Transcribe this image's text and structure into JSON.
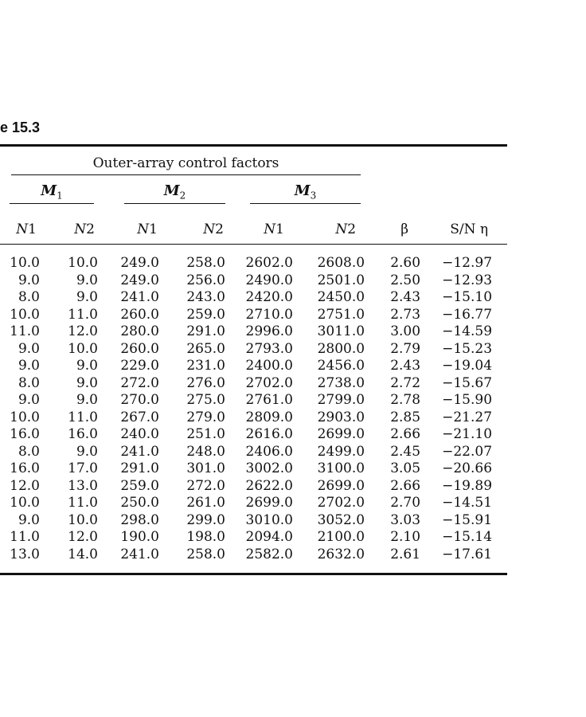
{
  "colors": {
    "ink": "#111111",
    "background": "#ffffff"
  },
  "caption": "e 15.3",
  "chart_data": {
    "type": "table",
    "span_header": "Outer-array control factors",
    "group_headers": [
      {
        "letter": "M",
        "sub": "1"
      },
      {
        "letter": "M",
        "sub": "2"
      },
      {
        "letter": "M",
        "sub": "3"
      }
    ],
    "sub_headers": [
      {
        "n": "N",
        "num": "1"
      },
      {
        "n": "N",
        "num": "2"
      },
      {
        "n": "N",
        "num": "1"
      },
      {
        "n": "N",
        "num": "2"
      },
      {
        "n": "N",
        "num": "1"
      },
      {
        "n": "N",
        "num": "2"
      }
    ],
    "beta_label": "β",
    "sn_label": "S/N η",
    "rows": [
      [
        "10.0",
        "10.0",
        "249.0",
        "258.0",
        "2602.0",
        "2608.0",
        "2.60",
        "−12.97"
      ],
      [
        "9.0",
        "9.0",
        "249.0",
        "256.0",
        "2490.0",
        "2501.0",
        "2.50",
        "−12.93"
      ],
      [
        "8.0",
        "9.0",
        "241.0",
        "243.0",
        "2420.0",
        "2450.0",
        "2.43",
        "−15.10"
      ],
      [
        "10.0",
        "11.0",
        "260.0",
        "259.0",
        "2710.0",
        "2751.0",
        "2.73",
        "−16.77"
      ],
      [
        "11.0",
        "12.0",
        "280.0",
        "291.0",
        "2996.0",
        "3011.0",
        "3.00",
        "−14.59"
      ],
      [
        "9.0",
        "10.0",
        "260.0",
        "265.0",
        "2793.0",
        "2800.0",
        "2.79",
        "−15.23"
      ],
      [
        "9.0",
        "9.0",
        "229.0",
        "231.0",
        "2400.0",
        "2456.0",
        "2.43",
        "−19.04"
      ],
      [
        "8.0",
        "9.0",
        "272.0",
        "276.0",
        "2702.0",
        "2738.0",
        "2.72",
        "−15.67"
      ],
      [
        "9.0",
        "9.0",
        "270.0",
        "275.0",
        "2761.0",
        "2799.0",
        "2.78",
        "−15.90"
      ],
      [
        "10.0",
        "11.0",
        "267.0",
        "279.0",
        "2809.0",
        "2903.0",
        "2.85",
        "−21.27"
      ],
      [
        "16.0",
        "16.0",
        "240.0",
        "251.0",
        "2616.0",
        "2699.0",
        "2.66",
        "−21.10"
      ],
      [
        "8.0",
        "9.0",
        "241.0",
        "248.0",
        "2406.0",
        "2499.0",
        "2.45",
        "−22.07"
      ],
      [
        "16.0",
        "17.0",
        "291.0",
        "301.0",
        "3002.0",
        "3100.0",
        "3.05",
        "−20.66"
      ],
      [
        "12.0",
        "13.0",
        "259.0",
        "272.0",
        "2622.0",
        "2699.0",
        "2.66",
        "−19.89"
      ],
      [
        "10.0",
        "11.0",
        "250.0",
        "261.0",
        "2699.0",
        "2702.0",
        "2.70",
        "−14.51"
      ],
      [
        "9.0",
        "10.0",
        "298.0",
        "299.0",
        "3010.0",
        "3052.0",
        "3.03",
        "−15.91"
      ],
      [
        "11.0",
        "12.0",
        "190.0",
        "198.0",
        "2094.0",
        "2100.0",
        "2.10",
        "−15.14"
      ],
      [
        "13.0",
        "14.0",
        "241.0",
        "258.0",
        "2582.0",
        "2632.0",
        "2.61",
        "−17.61"
      ]
    ]
  }
}
